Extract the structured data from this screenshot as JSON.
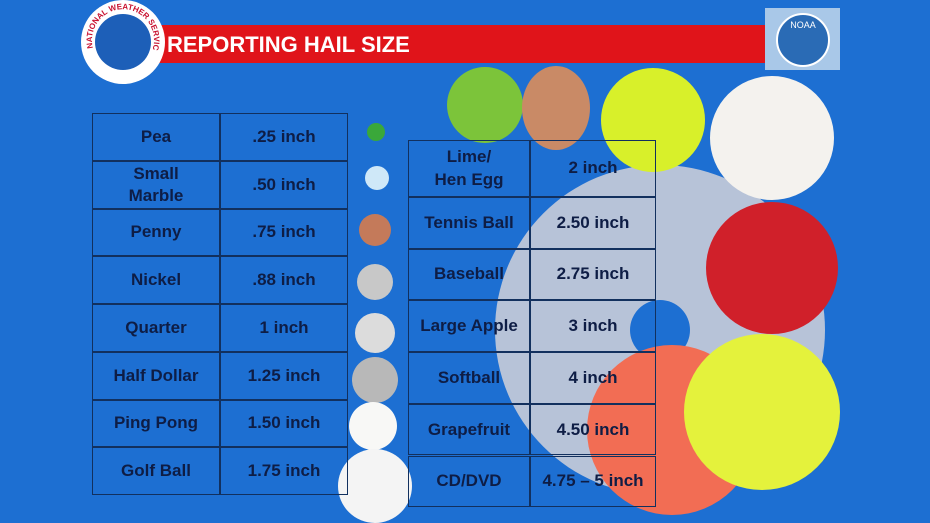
{
  "header": {
    "title": "REPORTING HAIL SIZE",
    "logo": "NATIONAL WEATHER SERVICE",
    "agency": "NOAA"
  },
  "left_table": {
    "rows": [
      [
        "Pea",
        ".25 inch"
      ],
      [
        "Small\nMarble",
        ".50 inch"
      ],
      [
        "Penny",
        ".75 inch"
      ],
      [
        "Nickel",
        ".88 inch"
      ],
      [
        "Quarter",
        "1 inch"
      ],
      [
        "Half Dollar",
        "1.25 inch"
      ],
      [
        "Ping Pong",
        "1.50 inch"
      ],
      [
        "Golf Ball",
        "1.75 inch"
      ]
    ]
  },
  "right_table": {
    "rows": [
      [
        "Lime/\nHen Egg",
        "2 inch"
      ],
      [
        "Tennis Ball",
        "2.50 inch"
      ],
      [
        "Baseball",
        "2.75 inch"
      ],
      [
        "Large Apple",
        "3 inch"
      ],
      [
        "Softball",
        "4 inch"
      ],
      [
        "Grapefruit",
        "4.50 inch"
      ],
      [
        "CD/DVD",
        "4.75 – 5 inch"
      ]
    ]
  }
}
